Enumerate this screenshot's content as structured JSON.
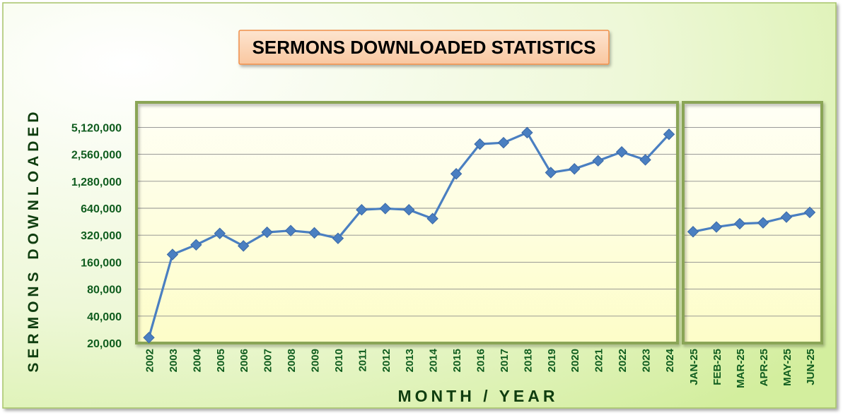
{
  "chart_data": {
    "type": "line",
    "title": "SERMONS DOWNLOADED STATISTICS",
    "xlabel": "MONTH / YEAR",
    "ylabel": "SERMONS DOWNLOADED",
    "y_scale": "log2",
    "ylim": [
      20000,
      6500000
    ],
    "y_ticks": [
      20000,
      40000,
      80000,
      160000,
      320000,
      640000,
      1280000,
      2560000,
      5120000
    ],
    "y_tick_labels": [
      "20,000",
      "40,000",
      "80,000",
      "160,000",
      "320,000",
      "640,000",
      "1,280,000",
      "2,560,000",
      "5,120,000"
    ],
    "grid": true,
    "panels": [
      {
        "categories": [
          "2002",
          "2003",
          "2004",
          "2005",
          "2006",
          "2007",
          "2008",
          "2009",
          "2010",
          "2011",
          "2012",
          "2013",
          "2014",
          "2015",
          "2016",
          "2017",
          "2018",
          "2019",
          "2020",
          "2021",
          "2022",
          "2023",
          "2024"
        ],
        "values": [
          23000,
          195000,
          250000,
          335000,
          243000,
          345000,
          360000,
          340000,
          295000,
          615000,
          635000,
          615000,
          490000,
          1550000,
          3330000,
          3450000,
          4470000,
          1600000,
          1760000,
          2170000,
          2720000,
          2220000,
          4280000
        ]
      },
      {
        "categories": [
          "JAN-25",
          "FEB-25",
          "MAR-25",
          "APR-25",
          "MAY-25",
          "JUN-25"
        ],
        "values": [
          350000,
          395000,
          430000,
          440000,
          510000,
          575000
        ]
      }
    ],
    "colors": {
      "line": "#4a7fc1",
      "marker": "#4a7fc1",
      "text": "#0f5c1e",
      "title_box": "#fbd5b5",
      "title_border": "#f08f4a",
      "plot_border": "#8aa556",
      "plot_fill": "#fefed2",
      "page_fill": "#e2f2c0",
      "gridline": "#8c8c8c"
    }
  }
}
